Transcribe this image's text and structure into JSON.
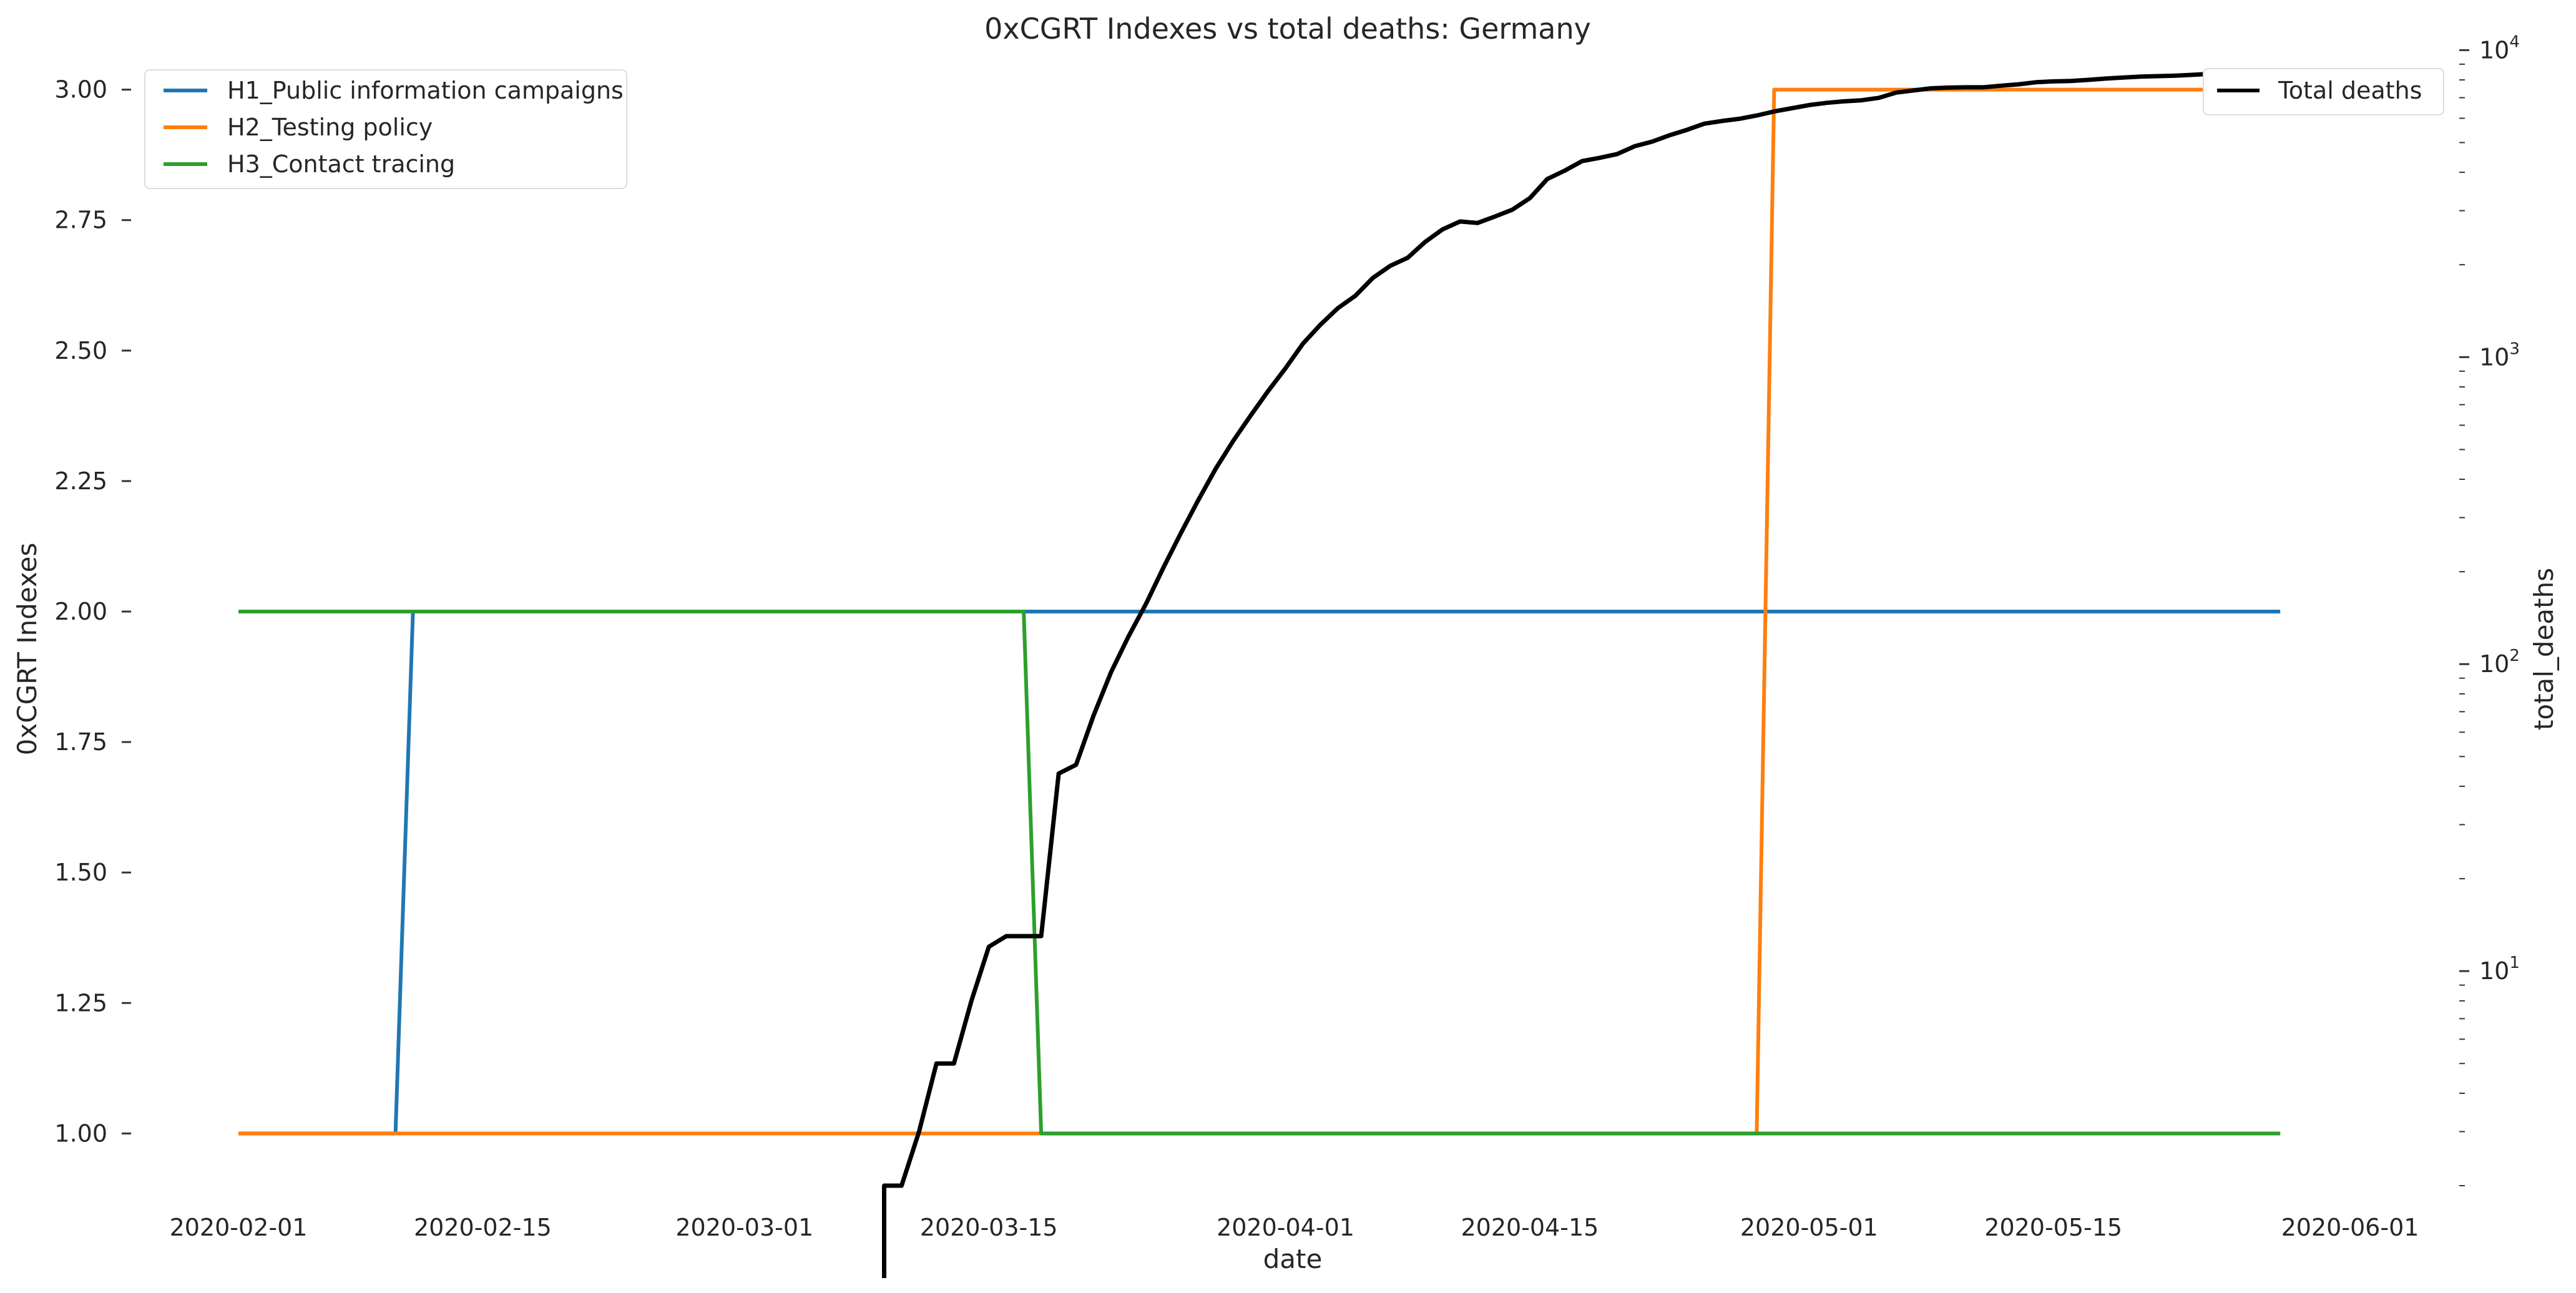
{
  "chart_data": {
    "type": "line",
    "title": "0xCGRT Indexes vs total deaths:  Germany",
    "xlabel": "date",
    "ylabel": "0xCGRT Indexes",
    "y2label": "total_deaths",
    "xlim": [
      "2020-02-01",
      "2020-06-01"
    ],
    "ylim": [
      0.9,
      3.1
    ],
    "y2lim": [
      2,
      11000
    ],
    "y2scale": "log",
    "grid": false,
    "x_ticks": [
      "2020-02-01",
      "2020-02-15",
      "2020-03-01",
      "2020-03-15",
      "2020-04-01",
      "2020-04-15",
      "2020-05-01",
      "2020-05-15",
      "2020-06-01"
    ],
    "y_ticks": [
      "1.00",
      "1.25",
      "1.50",
      "1.75",
      "2.00",
      "2.25",
      "2.50",
      "2.75",
      "3.00"
    ],
    "y2_ticks": [
      {
        "base": "10",
        "exp": "1"
      },
      {
        "base": "10",
        "exp": "2"
      },
      {
        "base": "10",
        "exp": "3"
      },
      {
        "base": "10",
        "exp": "4"
      }
    ],
    "legend_left": {
      "placement": "top-left",
      "entries": [
        "H1_Public information campaigns",
        "H2_Testing policy",
        "H3_Contact tracing"
      ]
    },
    "legend_right": {
      "placement": "top-right",
      "entries": [
        "Total deaths"
      ]
    },
    "series": [
      {
        "name": "H1_Public information campaigns",
        "axis": "left",
        "color": "#1f77b4",
        "points": [
          [
            "2020-02-01",
            1
          ],
          [
            "2020-02-10",
            1
          ],
          [
            "2020-02-11",
            2
          ],
          [
            "2020-05-28",
            2
          ]
        ]
      },
      {
        "name": "H2_Testing policy",
        "axis": "left",
        "color": "#ff7f0e",
        "points": [
          [
            "2020-02-01",
            1
          ],
          [
            "2020-04-28",
            1
          ],
          [
            "2020-04-29",
            3
          ],
          [
            "2020-05-28",
            3
          ]
        ]
      },
      {
        "name": "H3_Contact tracing",
        "axis": "left",
        "color": "#2ca02c",
        "points": [
          [
            "2020-02-01",
            2
          ],
          [
            "2020-03-17",
            2
          ],
          [
            "2020-03-18",
            1
          ],
          [
            "2020-05-28",
            1
          ]
        ]
      },
      {
        "name": "Total deaths",
        "axis": "right",
        "color": "#000000",
        "points": [
          [
            "2020-03-09",
            1
          ],
          [
            "2020-03-09",
            2
          ],
          [
            "2020-03-10",
            2
          ],
          [
            "2020-03-11",
            3
          ],
          [
            "2020-03-12",
            5
          ],
          [
            "2020-03-13",
            5
          ],
          [
            "2020-03-14",
            8
          ],
          [
            "2020-03-15",
            12
          ],
          [
            "2020-03-16",
            13
          ],
          [
            "2020-03-17",
            13
          ],
          [
            "2020-03-18",
            13
          ],
          [
            "2020-03-19",
            44
          ],
          [
            "2020-03-20",
            47
          ],
          [
            "2020-03-21",
            68
          ],
          [
            "2020-03-22",
            94
          ],
          [
            "2020-03-23",
            123
          ],
          [
            "2020-03-24",
            157
          ],
          [
            "2020-03-25",
            206
          ],
          [
            "2020-03-26",
            267
          ],
          [
            "2020-03-27",
            342
          ],
          [
            "2020-03-28",
            433
          ],
          [
            "2020-03-29",
            533
          ],
          [
            "2020-03-30",
            645
          ],
          [
            "2020-03-31",
            775
          ],
          [
            "2020-04-01",
            920
          ],
          [
            "2020-04-02",
            1107
          ],
          [
            "2020-04-03",
            1275
          ],
          [
            "2020-04-04",
            1444
          ],
          [
            "2020-04-05",
            1584
          ],
          [
            "2020-04-06",
            1810
          ],
          [
            "2020-04-07",
            1983
          ],
          [
            "2020-04-08",
            2107
          ],
          [
            "2020-04-09",
            2373
          ],
          [
            "2020-04-10",
            2607
          ],
          [
            "2020-04-11",
            2767
          ],
          [
            "2020-04-12",
            2736
          ],
          [
            "2020-04-13",
            2871
          ],
          [
            "2020-04-14",
            3022
          ],
          [
            "2020-04-15",
            3294
          ],
          [
            "2020-04-16",
            3804
          ],
          [
            "2020-04-17",
            4052
          ],
          [
            "2020-04-18",
            4352
          ],
          [
            "2020-04-19",
            4459
          ],
          [
            "2020-04-20",
            4586
          ],
          [
            "2020-04-21",
            4862
          ],
          [
            "2020-04-22",
            5033
          ],
          [
            "2020-04-23",
            5279
          ],
          [
            "2020-04-24",
            5500
          ],
          [
            "2020-04-25",
            5760
          ],
          [
            "2020-04-26",
            5877
          ],
          [
            "2020-04-27",
            5976
          ],
          [
            "2020-04-28",
            6126
          ],
          [
            "2020-04-29",
            6314
          ],
          [
            "2020-04-30",
            6467
          ],
          [
            "2020-05-01",
            6623
          ],
          [
            "2020-05-02",
            6736
          ],
          [
            "2020-05-03",
            6812
          ],
          [
            "2020-05-04",
            6866
          ],
          [
            "2020-05-05",
            6993
          ],
          [
            "2020-05-06",
            7275
          ],
          [
            "2020-05-07",
            7392
          ],
          [
            "2020-05-08",
            7510
          ],
          [
            "2020-05-09",
            7549
          ],
          [
            "2020-05-10",
            7569
          ],
          [
            "2020-05-11",
            7569
          ],
          [
            "2020-05-12",
            7661
          ],
          [
            "2020-05-13",
            7738
          ],
          [
            "2020-05-14",
            7862
          ],
          [
            "2020-05-15",
            7913
          ],
          [
            "2020-05-16",
            7935
          ],
          [
            "2020-05-17",
            8003
          ],
          [
            "2020-05-18",
            8081
          ],
          [
            "2020-05-19",
            8144
          ],
          [
            "2020-05-20",
            8203
          ],
          [
            "2020-05-21",
            8228
          ],
          [
            "2020-05-22",
            8261
          ],
          [
            "2020-05-23",
            8309
          ],
          [
            "2020-05-24",
            8372
          ],
          [
            "2020-05-25",
            8428
          ],
          [
            "2020-05-26",
            8450
          ],
          [
            "2020-05-27",
            8504
          ],
          [
            "2020-05-28",
            8530
          ]
        ]
      }
    ]
  }
}
